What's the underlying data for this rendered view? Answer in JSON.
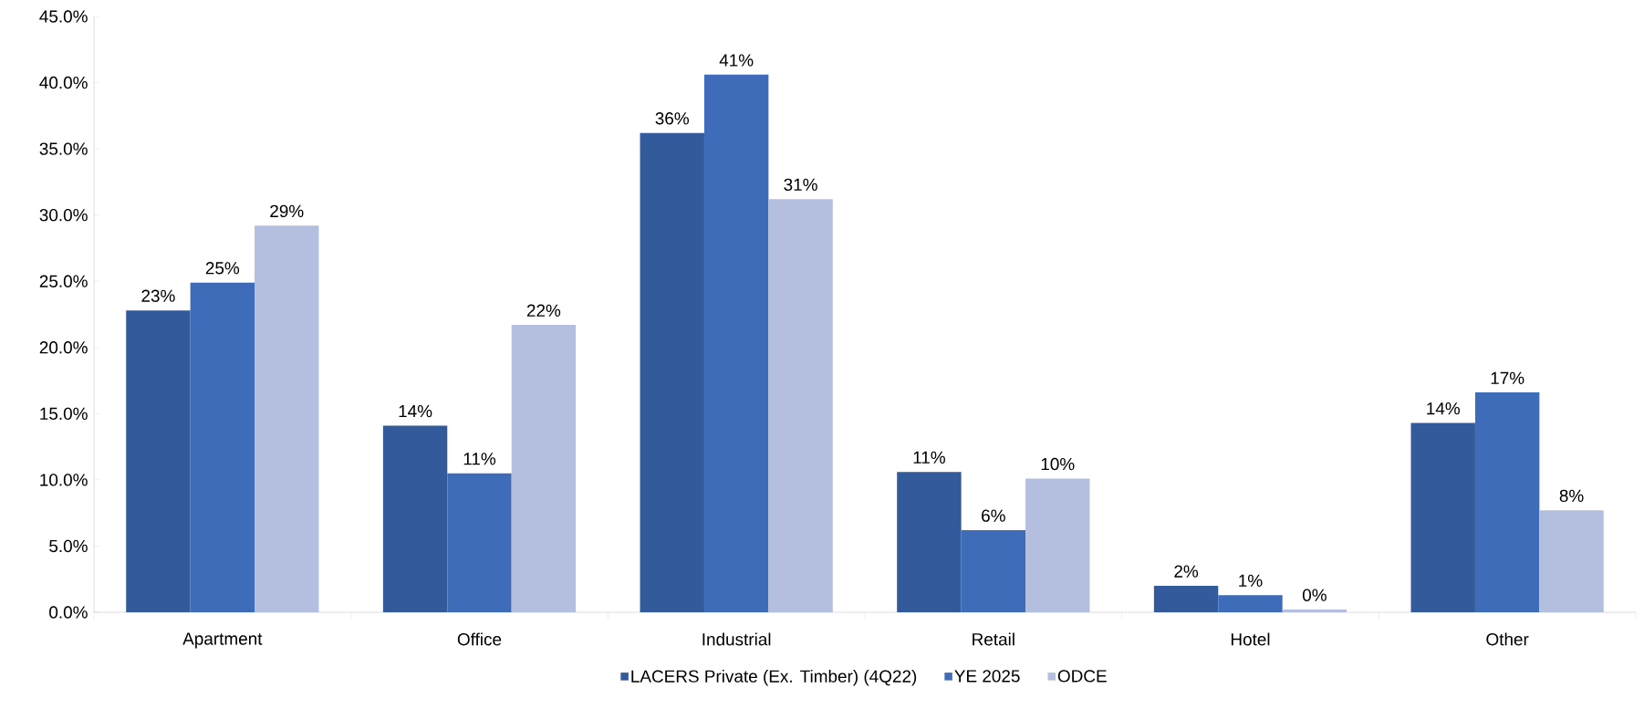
{
  "chart_data": {
    "type": "bar",
    "categories": [
      "Apartment",
      "Office",
      "Industrial",
      "Retail",
      "Hotel",
      "Other"
    ],
    "series": [
      {
        "name": "LACERS Private (Ex. Timber) (4Q22)",
        "color": "#335a9a",
        "values": [
          22.8,
          14.1,
          36.2,
          10.6,
          2.0,
          14.3
        ],
        "value_labels": [
          "23%",
          "14%",
          "36%",
          "11%",
          "2%",
          "14%"
        ]
      },
      {
        "name": "YE 2025",
        "color": "#3f6cb8",
        "values": [
          24.9,
          10.5,
          40.6,
          6.2,
          1.3,
          16.6
        ],
        "value_labels": [
          "25%",
          "11%",
          "41%",
          "6%",
          "1%",
          "17%"
        ]
      },
      {
        "name": "ODCE",
        "color": "#b4bfe0",
        "values": [
          29.2,
          21.7,
          31.2,
          10.1,
          0.2,
          7.7
        ],
        "value_labels": [
          "29%",
          "22%",
          "31%",
          "10%",
          "0%",
          "8%"
        ]
      }
    ],
    "ylim": [
      0,
      45
    ],
    "yticks": [
      {
        "value": 0,
        "label": "0.0%"
      },
      {
        "value": 5,
        "label": "5.0%"
      },
      {
        "value": 10,
        "label": "10.0%"
      },
      {
        "value": 15,
        "label": "15.0%"
      },
      {
        "value": 20,
        "label": "20.0%"
      },
      {
        "value": 25,
        "label": "25.0%"
      },
      {
        "value": 30,
        "label": "30.0%"
      },
      {
        "value": 35,
        "label": "35.0%"
      },
      {
        "value": 40,
        "label": "40.0%"
      },
      {
        "value": 45,
        "label": "45.0%"
      }
    ],
    "grid": false,
    "legend": "bottom"
  }
}
